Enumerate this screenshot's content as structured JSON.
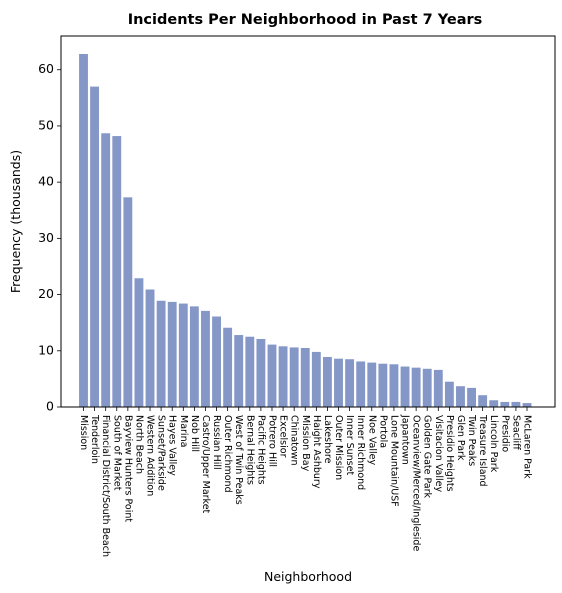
{
  "chart_data": {
    "type": "bar",
    "title": "Incidents Per Neighborhood in Past 7 Years",
    "xlabel": "Neighborhood",
    "ylabel": "Frequency (thousands)",
    "ylim": [
      0,
      66
    ],
    "yticks": [
      0,
      10,
      20,
      30,
      40,
      50,
      60
    ],
    "bar_color": "#8497c7",
    "grid": false,
    "categories": [
      "Mission",
      "Tenderloin",
      "Financial District/South Beach",
      "South of Market",
      "Bayview Hunters Point",
      "North Beach",
      "Western Addition",
      "Sunset/Parkside",
      "Hayes Valley",
      "Marina",
      "Nob Hill",
      "Castro/Upper Market",
      "Russian Hill",
      "Outer Richmond",
      "West of Twin Peaks",
      "Bernal Heights",
      "Pacific Heights",
      "Potrero Hill",
      "Excelsior",
      "Chinatown",
      "Mission Bay",
      "Haight Ashbury",
      "Lakeshore",
      "Outer Mission",
      "Inner Sunset",
      "Inner Richmond",
      "Noe Valley",
      "Portola",
      "Lone Mountain/USF",
      "Japantown",
      "Oceanview/Merced/Ingleside",
      "Golden Gate Park",
      "Visitacion Valley",
      "Presidio Heights",
      "Glen Park",
      "Twin Peaks",
      "Treasure Island",
      "Lincoln Park",
      "Presidio",
      "Seacliff",
      "McLaren Park"
    ],
    "values": [
      62.8,
      57.0,
      48.7,
      48.2,
      37.3,
      22.9,
      20.9,
      18.9,
      18.7,
      18.4,
      17.9,
      17.1,
      16.1,
      14.1,
      12.8,
      12.5,
      12.1,
      11.1,
      10.8,
      10.6,
      10.5,
      9.8,
      8.9,
      8.6,
      8.5,
      8.1,
      7.9,
      7.7,
      7.6,
      7.2,
      7.0,
      6.8,
      6.6,
      4.5,
      3.7,
      3.4,
      2.1,
      1.2,
      0.9,
      0.9,
      0.7
    ]
  }
}
